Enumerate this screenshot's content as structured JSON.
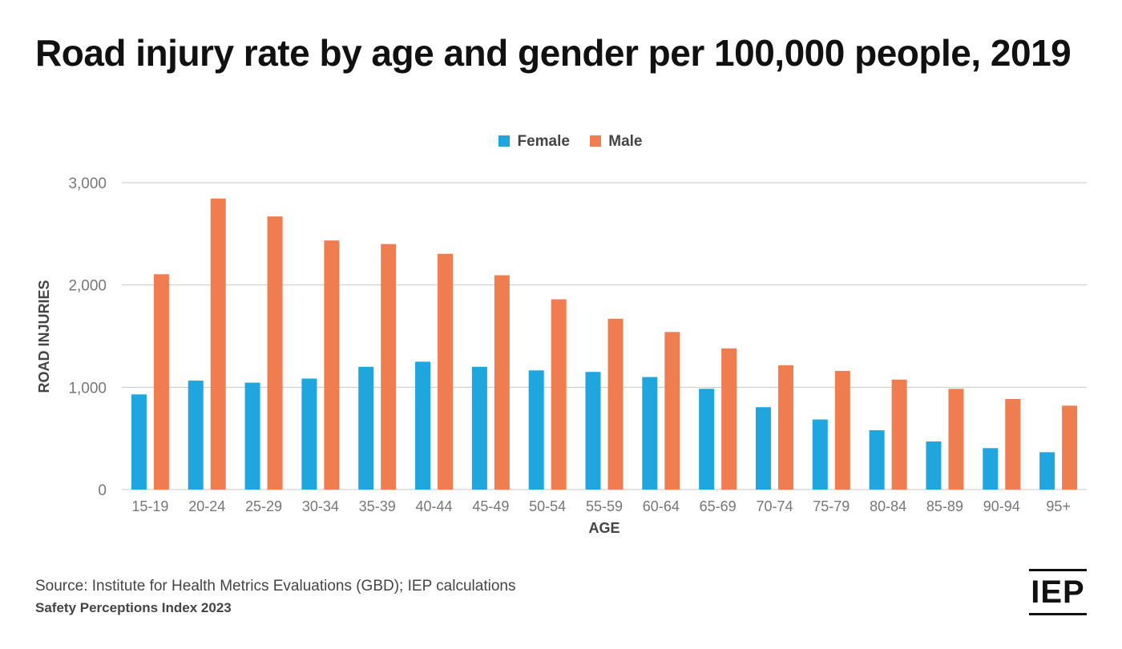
{
  "title": "Road injury rate by age and gender per 100,000 people, 2019",
  "source": "Source: Institute for Health Metrics Evaluations (GBD); IEP calculations",
  "publication": "Safety Perceptions Index 2023",
  "logo_text": "IEP",
  "colors": {
    "female": "#1fa6df",
    "male": "#f07d50",
    "grid": "#c8c8c8",
    "axis_text": "#777777"
  },
  "chart_data": {
    "type": "bar",
    "xlabel": "AGE",
    "ylabel": "ROAD INJURIES",
    "ylim": [
      0,
      3000
    ],
    "yticks": [
      0,
      1000,
      2000,
      3000
    ],
    "ytick_labels": [
      "0",
      "1,000",
      "2,000",
      "3,000"
    ],
    "grid": true,
    "legend_position": "top-center",
    "categories": [
      "15-19",
      "20-24",
      "25-29",
      "30-34",
      "35-39",
      "40-44",
      "45-49",
      "50-54",
      "55-59",
      "60-64",
      "65-69",
      "70-74",
      "75-79",
      "80-84",
      "85-89",
      "90-94",
      "95+"
    ],
    "series": [
      {
        "name": "Female",
        "values": [
          930,
          1065,
          1045,
          1085,
          1200,
          1250,
          1200,
          1165,
          1150,
          1100,
          985,
          805,
          685,
          580,
          470,
          405,
          365
        ]
      },
      {
        "name": "Male",
        "values": [
          2105,
          2845,
          2670,
          2435,
          2400,
          2305,
          2095,
          1860,
          1670,
          1540,
          1380,
          1215,
          1160,
          1075,
          985,
          885,
          820
        ]
      }
    ]
  }
}
